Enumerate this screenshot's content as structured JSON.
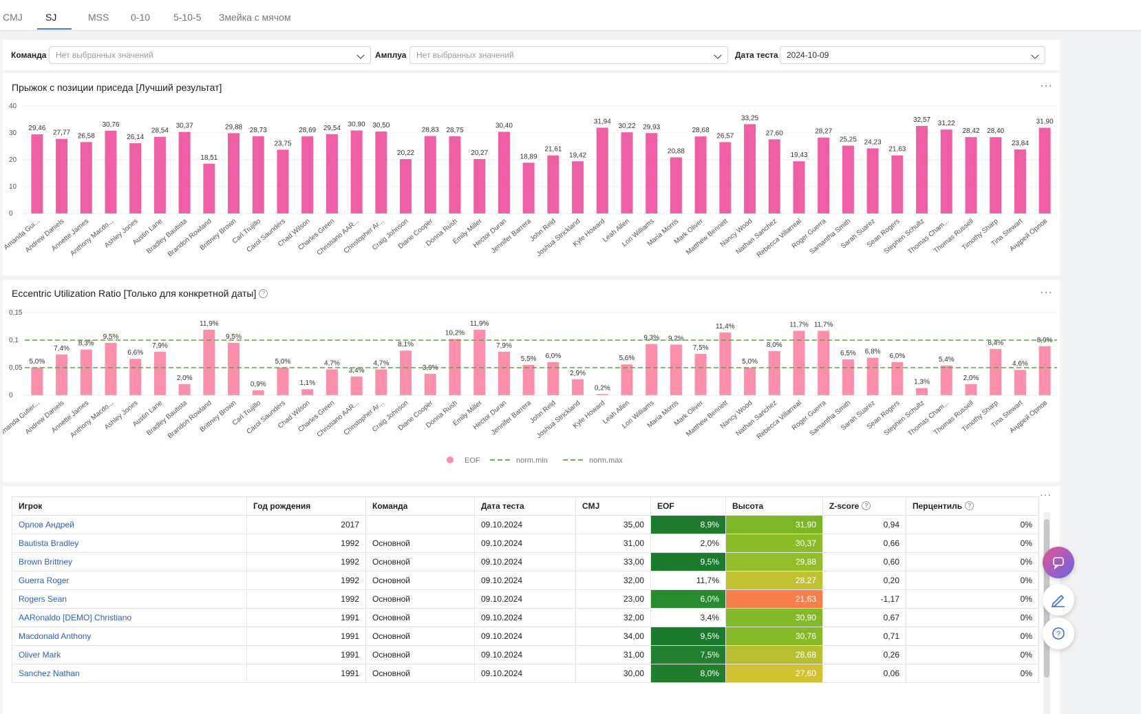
{
  "tabs": [
    "CMJ",
    "SJ",
    "MSS",
    "0-10",
    "5-10-5",
    "Змейка с мячом"
  ],
  "active_tab": "SJ",
  "filters": {
    "team_label": "Команда",
    "team_placeholder": "Нет выбранных значений",
    "role_label": "Амплуа",
    "role_placeholder": "Нет выбранных значений",
    "date_label": "Дата теста",
    "date_value": "2024-10-09"
  },
  "chart1_title": "Прыжок с позиции приседа [Лучший результат]",
  "chart2_title": "Eccentric Utilization Ratio [Только для конкретной даты]",
  "chart_data": [
    {
      "type": "bar",
      "title": "Прыжок с позиции приседа [Лучший результат]",
      "categories": [
        "Amanda Gui...",
        "Andrew Daniels",
        "Annette James",
        "Anthony Macdo...",
        "Ashley Jones",
        "Austin Lane",
        "Bradley Bautista",
        "Brandon Rowland",
        "Brittney Brown",
        "Carl Trujillo",
        "Carol Saunders",
        "Chad Wilson",
        "Charles Green",
        "Christiano AAR...",
        "Christopher Ar...",
        "Craig Johnson",
        "Diane Cooper",
        "Donna Rush",
        "Emily Miller",
        "Hector Duran",
        "Jennifer Barrera",
        "John Reid",
        "Joshua Strickland",
        "Kyle Howard",
        "Leah Allen",
        "Lori Williams",
        "Maria Morris",
        "Mark Oliver",
        "Matthew Bennett",
        "Nancy Wood",
        "Nathan Sanchez",
        "Rebecca Villarreal",
        "Roger Guerra",
        "Samantha Smith",
        "Sarah Suarez",
        "Sean Rogers",
        "Stephen Schultz",
        "Thomas Cham...",
        "Thomas Russell",
        "Timothy Sharp",
        "Tina Stewart",
        "Андрей Орлов"
      ],
      "values": [
        29.46,
        27.77,
        26.58,
        30.76,
        26.14,
        28.54,
        30.37,
        18.51,
        29.88,
        28.73,
        23.75,
        28.69,
        29.54,
        30.9,
        30.5,
        20.22,
        28.83,
        28.75,
        20.27,
        30.4,
        18.89,
        21.61,
        19.42,
        31.94,
        30.22,
        29.93,
        20.88,
        28.68,
        26.57,
        33.25,
        27.6,
        19.43,
        28.27,
        25.25,
        24.23,
        21.63,
        32.57,
        31.22,
        28.42,
        28.4,
        23.84,
        31.9
      ],
      "labels": [
        "29,46",
        "27,77",
        "26,58",
        "30,76",
        "26,14",
        "28,54",
        "30,37",
        "18,51",
        "29,88",
        "28,73",
        "23,75",
        "28,69",
        "29,54",
        "30,90",
        "30,50",
        "20,22",
        "28,83",
        "28,75",
        "20,27",
        "30,40",
        "18,89",
        "21,61",
        "19,42",
        "31,94",
        "30,22",
        "29,93",
        "20,88",
        "28,68",
        "26,57",
        "33,25",
        "27,60",
        "19,43",
        "28,27",
        "25,25",
        "24,23",
        "21,63",
        "32,57",
        "31,22",
        "28,42",
        "28,40",
        "23,84",
        "31,90"
      ],
      "ylim": [
        0,
        40
      ],
      "yticks": [
        "0",
        "10",
        "20",
        "30",
        "40"
      ],
      "color": "#ee5fa4"
    },
    {
      "type": "bar",
      "title": "Eccentric Utilization Ratio [Только для конкретной даты]",
      "categories": [
        "Amanda Gutier...",
        "Andrew Daniels",
        "Annette James",
        "Anthony Macdo...",
        "Ashley Jones",
        "Austin Lane",
        "Bradley Bautista",
        "Brandon Rowland",
        "Brittney Brown",
        "Carl Trujillo",
        "Carol Saunders",
        "Chad Wilson",
        "Charles Green",
        "Christiano AAR...",
        "Christopher Ar...",
        "Craig Johnson",
        "Diane Cooper",
        "Donna Rush",
        "Emily Miller",
        "Hector Duran",
        "Jennifer Barrera",
        "John Reid",
        "Joshua Strickland",
        "Kyle Howard",
        "Leah Allen",
        "Lori Williams",
        "Maria Morris",
        "Mark Oliver",
        "Matthew Bennett",
        "Nancy Wood",
        "Nathan Sanchez",
        "Rebecca Villarreal",
        "Roger Guerra",
        "Samantha Smith",
        "Sarah Suarez",
        "Sean Rogers",
        "Stephen Schultz",
        "Thomas Cham...",
        "Thomas Russell",
        "Timothy Sharp",
        "Tina Stewart",
        "Андрей Орлов"
      ],
      "values": [
        0.05,
        0.074,
        0.083,
        0.095,
        0.066,
        0.079,
        0.02,
        0.119,
        0.095,
        0.009,
        0.05,
        0.011,
        0.047,
        0.034,
        0.047,
        0.081,
        0.039,
        0.102,
        0.119,
        0.079,
        0.055,
        0.06,
        0.029,
        0.002,
        0.056,
        0.093,
        0.092,
        0.075,
        0.114,
        0.05,
        0.08,
        0.117,
        0.117,
        0.065,
        0.068,
        0.06,
        0.013,
        0.054,
        0.02,
        0.084,
        0.046,
        0.089
      ],
      "labels": [
        "5,0%",
        "7,4%",
        "8,3%",
        "9,5%",
        "6,6%",
        "7,9%",
        "2,0%",
        "11,9%",
        "9,5%",
        "0,9%",
        "5,0%",
        "1,1%",
        "4,7%",
        "3,4%",
        "4,7%",
        "8,1%",
        "3,9%",
        "10,2%",
        "11,9%",
        "7,9%",
        "5,5%",
        "6,0%",
        "2,9%",
        "0,2%",
        "5,6%",
        "9,3%",
        "9,2%",
        "7,5%",
        "11,4%",
        "5,0%",
        "8,0%",
        "11,7%",
        "11,7%",
        "6,5%",
        "6,8%",
        "6,0%",
        "1,3%",
        "5,4%",
        "2,0%",
        "8,4%",
        "4,6%",
        "8,9%"
      ],
      "ylim": [
        0,
        0.15
      ],
      "yticks": [
        "0",
        "0,05",
        "0,1",
        "0,15"
      ],
      "norm_min": 0.05,
      "norm_max": 0.1,
      "color": "#fc8fab",
      "line_color": "#5aa832",
      "legend": [
        "EOF",
        "norm.min",
        "norm.max"
      ]
    }
  ],
  "table": {
    "columns": [
      "Игрок",
      "Год рождения",
      "Команда",
      "Дата теста",
      "CMJ",
      "EOF",
      "Высота",
      "Z-score",
      "Перцентиль"
    ],
    "rows": [
      {
        "player": "Орлов Андрей",
        "year": "2017",
        "team": "",
        "date": "09.10.2024",
        "cmj": "35,00",
        "eof": "8,9%",
        "eof_bg": "#1e7a2c",
        "height": "31,90",
        "height_bg": "#7cb526",
        "z": "0,94",
        "pct": "0%"
      },
      {
        "player": "Bautista Bradley",
        "year": "1992",
        "team": "Основной",
        "date": "09.10.2024",
        "cmj": "31,00",
        "eof": "2,0%",
        "eof_bg": "#ffffff",
        "height": "30,37",
        "height_bg": "#8bbb29",
        "z": "0,66",
        "pct": "0%"
      },
      {
        "player": "Brown Brittney",
        "year": "1992",
        "team": "Основной",
        "date": "09.10.2024",
        "cmj": "33,00",
        "eof": "9,5%",
        "eof_bg": "#1c7a2c",
        "height": "29,88",
        "height_bg": "#94bd2c",
        "z": "0,60",
        "pct": "0%"
      },
      {
        "player": "Guerra Roger",
        "year": "1992",
        "team": "Основной",
        "date": "09.10.2024",
        "cmj": "32,00",
        "eof": "11,7%",
        "eof_bg": "#ffffff",
        "height": "28,27",
        "height_bg": "#c2c131",
        "z": "0,20",
        "pct": "0%"
      },
      {
        "player": "Rogers Sean",
        "year": "1992",
        "team": "Основной",
        "date": "09.10.2024",
        "cmj": "23,00",
        "eof": "6,0%",
        "eof_bg": "#2a8a30",
        "height": "21,63",
        "height_bg": "#f77f4e",
        "z": "-1,17",
        "pct": "0%"
      },
      {
        "player": "AARonaldo [DEMO] Christiano",
        "year": "1991",
        "team": "Основной",
        "date": "09.10.2024",
        "cmj": "32,00",
        "eof": "3,4%",
        "eof_bg": "#ffffff",
        "height": "30,90",
        "height_bg": "#83b928",
        "z": "0,67",
        "pct": "0%"
      },
      {
        "player": "Macdonald Anthony",
        "year": "1991",
        "team": "Основной",
        "date": "09.10.2024",
        "cmj": "34,00",
        "eof": "9,5%",
        "eof_bg": "#1c7a2c",
        "height": "30,76",
        "height_bg": "#86ba29",
        "z": "0,71",
        "pct": "0%"
      },
      {
        "player": "Oliver Mark",
        "year": "1991",
        "team": "Основной",
        "date": "09.10.2024",
        "cmj": "31,00",
        "eof": "7,5%",
        "eof_bg": "#217f2d",
        "height": "28,68",
        "height_bg": "#b7c030",
        "z": "0,26",
        "pct": "0%"
      },
      {
        "player": "Sanchez Nathan",
        "year": "1991",
        "team": "Основной",
        "date": "09.10.2024",
        "cmj": "30,00",
        "eof": "8,0%",
        "eof_bg": "#207e2d",
        "height": "27,60",
        "height_bg": "#d2c232",
        "z": "0,06",
        "pct": "0%"
      }
    ]
  },
  "icons": {
    "chat": "chat-bubble-icon",
    "edit": "pen-icon",
    "help": "question-icon"
  }
}
